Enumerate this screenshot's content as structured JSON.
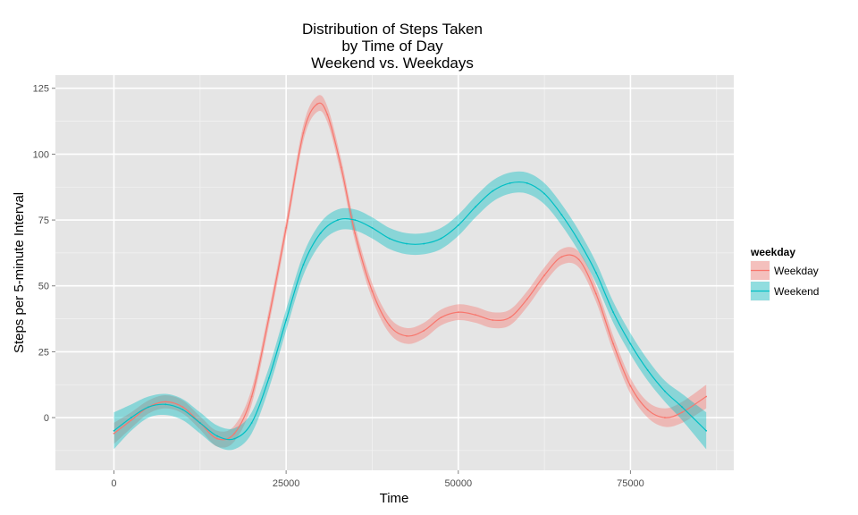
{
  "chart_data": {
    "type": "line",
    "title": [
      "Distribution of Steps Taken",
      "by Time of Day",
      "Weekend vs. Weekdays"
    ],
    "xlabel": "Time",
    "ylabel": "Steps per 5-minute Interval",
    "xlim": [
      -8500,
      90000
    ],
    "ylim": [
      -20,
      130
    ],
    "x_ticks": [
      0,
      25000,
      50000,
      75000
    ],
    "x_tick_labels": [
      "0",
      "25000",
      "50000",
      "75000"
    ],
    "y_ticks": [
      0,
      25,
      50,
      75,
      100,
      125
    ],
    "y_tick_labels": [
      "0",
      "25",
      "50",
      "75",
      "100",
      "125"
    ],
    "grid": true,
    "legend": {
      "title": "weekday",
      "position": "right",
      "entries": [
        "Weekday",
        "Weekend"
      ]
    },
    "series": [
      {
        "name": "Weekday",
        "color": "#f8766d",
        "band_color": "#f8766d",
        "x": [
          0,
          2500,
          5000,
          7500,
          10000,
          12500,
          15000,
          17500,
          20000,
          22500,
          25000,
          27500,
          29500,
          31000,
          33000,
          35000,
          37500,
          40000,
          42500,
          45000,
          47500,
          50000,
          52500,
          55000,
          57500,
          60000,
          62500,
          65000,
          67500,
          70000,
          72500,
          75000,
          77500,
          80000,
          82500,
          86000
        ],
        "y": [
          -6,
          -1,
          4,
          6,
          4,
          -2,
          -8,
          -6,
          8,
          38,
          72,
          108,
          119,
          115,
          95,
          70,
          48,
          35,
          31,
          33,
          38,
          40,
          39,
          37,
          38,
          45,
          54,
          61,
          60,
          47,
          28,
          12,
          3,
          0,
          2,
          8
        ],
        "ci": [
          4,
          3,
          2.5,
          2.5,
          2.5,
          2.5,
          3,
          3,
          3,
          3,
          3,
          3,
          3,
          3,
          3,
          3,
          3,
          3,
          3,
          3,
          3,
          3,
          3,
          3,
          3,
          3,
          3,
          3,
          3,
          3,
          3,
          3,
          3,
          3.5,
          4,
          4.5
        ]
      },
      {
        "name": "Weekend",
        "color": "#00bfc4",
        "band_color": "#00bfc4",
        "x": [
          0,
          2500,
          5000,
          7500,
          10000,
          12500,
          15000,
          17500,
          20000,
          22500,
          25000,
          27500,
          30000,
          32500,
          35000,
          37500,
          40000,
          42500,
          45000,
          47500,
          50000,
          52500,
          55000,
          57500,
          60000,
          62500,
          65000,
          67500,
          70000,
          72500,
          75000,
          77500,
          80000,
          82500,
          86000
        ],
        "y": [
          -5,
          0,
          4,
          5,
          3,
          -2,
          -7,
          -8,
          -2,
          15,
          37,
          58,
          70,
          75,
          75,
          72,
          68,
          66,
          66,
          68,
          73,
          80,
          86,
          89,
          89,
          85,
          77,
          67,
          55,
          40,
          28,
          18,
          10,
          4,
          -5
        ],
        "ci": [
          7,
          5,
          4,
          4,
          4,
          4,
          4,
          4,
          4,
          4,
          4,
          4,
          4,
          4,
          4,
          4,
          4,
          4,
          4,
          4,
          4,
          4,
          4,
          4,
          4,
          4,
          4,
          4,
          4,
          4,
          4,
          4,
          4,
          5,
          7
        ]
      }
    ]
  }
}
